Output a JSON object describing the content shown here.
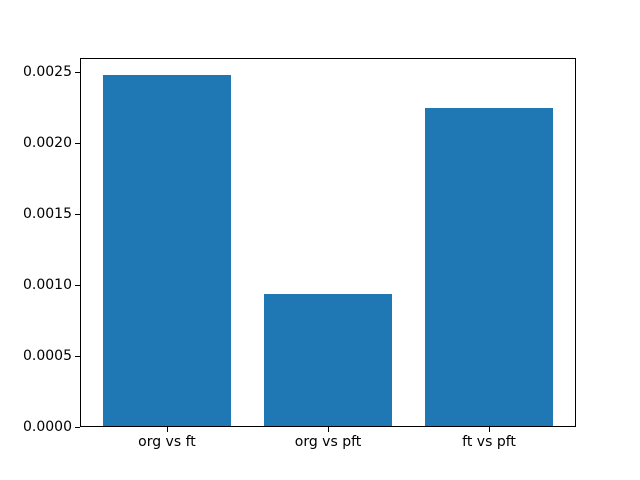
{
  "chart_data": {
    "type": "bar",
    "categories": [
      "org vs ft",
      "org vs pft",
      "ft vs pft"
    ],
    "values": [
      0.00248,
      0.00094,
      0.00225
    ],
    "title": "",
    "xlabel": "",
    "ylabel": "",
    "ylim": [
      0,
      0.0026
    ],
    "xlim": [
      -0.54,
      2.54
    ],
    "yticks": [
      0.0,
      0.0005,
      0.001,
      0.0015,
      0.002,
      0.0025
    ],
    "ytick_labels": [
      "0.0000",
      "0.0005",
      "0.0010",
      "0.0015",
      "0.0020",
      "0.0025"
    ],
    "bar_color": "#1f77b4",
    "bar_width_fraction": 0.8,
    "grid": false,
    "legend_position": "none"
  },
  "figure": {
    "background_color": "#ffffff",
    "frame_color": "#000000",
    "text_color": "#000000"
  }
}
